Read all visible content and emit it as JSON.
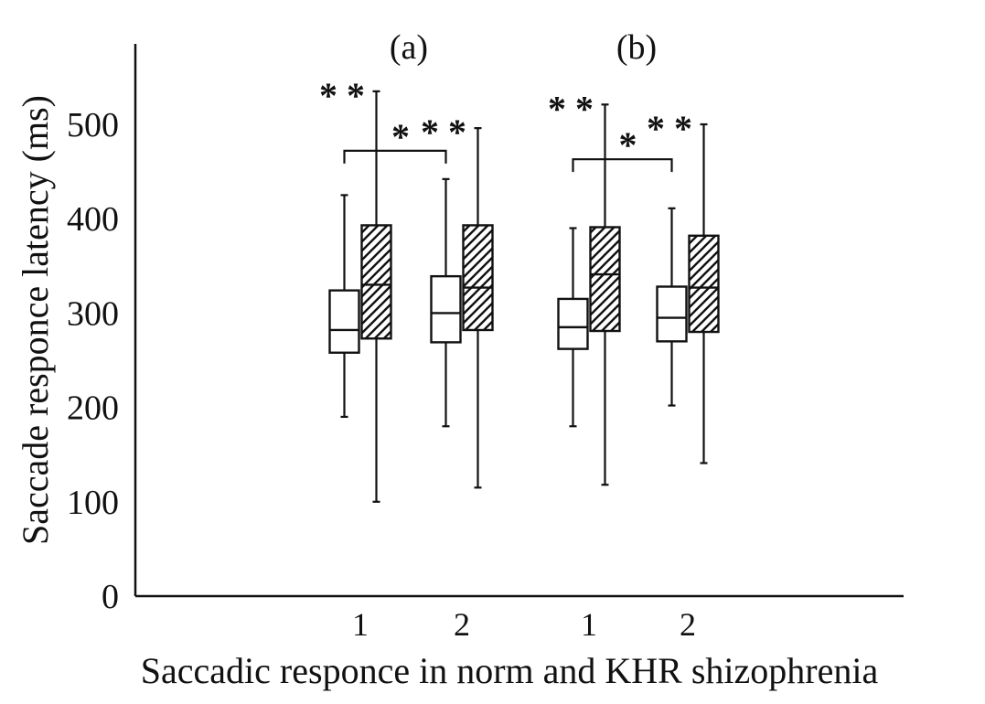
{
  "chart_data": {
    "type": "boxplot",
    "title": "",
    "xlabel": "Saccadic responce in norm and KHR shizophrenia",
    "ylabel": "Saccade responce latency (ms)",
    "ylim": [
      0,
      580
    ],
    "yticks": [
      "0",
      "100",
      "200",
      "300",
      "400",
      "500"
    ],
    "grid": false,
    "styles": {
      "plain": "white box",
      "hatched": "diagonal hatched box"
    },
    "panels": [
      {
        "label": "(a)",
        "groups": [
          {
            "category": "1",
            "stars": "* *",
            "boxes": [
              {
                "style": "plain",
                "min": 190,
                "q1": 258,
                "median": 282,
                "q3": 324,
                "max": 425
              },
              {
                "style": "hatched",
                "min": 100,
                "q1": 273,
                "median": 330,
                "q3": 393,
                "max": 535
              }
            ]
          },
          {
            "category": "2",
            "stars": "* *",
            "boxes": [
              {
                "style": "plain",
                "min": 180,
                "q1": 269,
                "median": 300,
                "q3": 339,
                "max": 442
              },
              {
                "style": "hatched",
                "min": 115,
                "q1": 282,
                "median": 327,
                "q3": 393,
                "max": 496
              }
            ]
          }
        ],
        "bracket": {
          "label": "*",
          "between": [
            "1",
            "2"
          ],
          "y": 472
        }
      },
      {
        "label": "(b)",
        "groups": [
          {
            "category": "1",
            "stars": "* *",
            "boxes": [
              {
                "style": "plain",
                "min": 180,
                "q1": 262,
                "median": 285,
                "q3": 315,
                "max": 390
              },
              {
                "style": "hatched",
                "min": 118,
                "q1": 281,
                "median": 341,
                "q3": 391,
                "max": 521
              }
            ]
          },
          {
            "category": "2",
            "stars": "* *",
            "boxes": [
              {
                "style": "plain",
                "min": 202,
                "q1": 270,
                "median": 295,
                "q3": 328,
                "max": 411
              },
              {
                "style": "hatched",
                "min": 141,
                "q1": 280,
                "median": 327,
                "q3": 382,
                "max": 500
              }
            ]
          }
        ],
        "bracket": {
          "label": "*",
          "between": [
            "1",
            "2"
          ],
          "y": 463
        }
      }
    ]
  }
}
